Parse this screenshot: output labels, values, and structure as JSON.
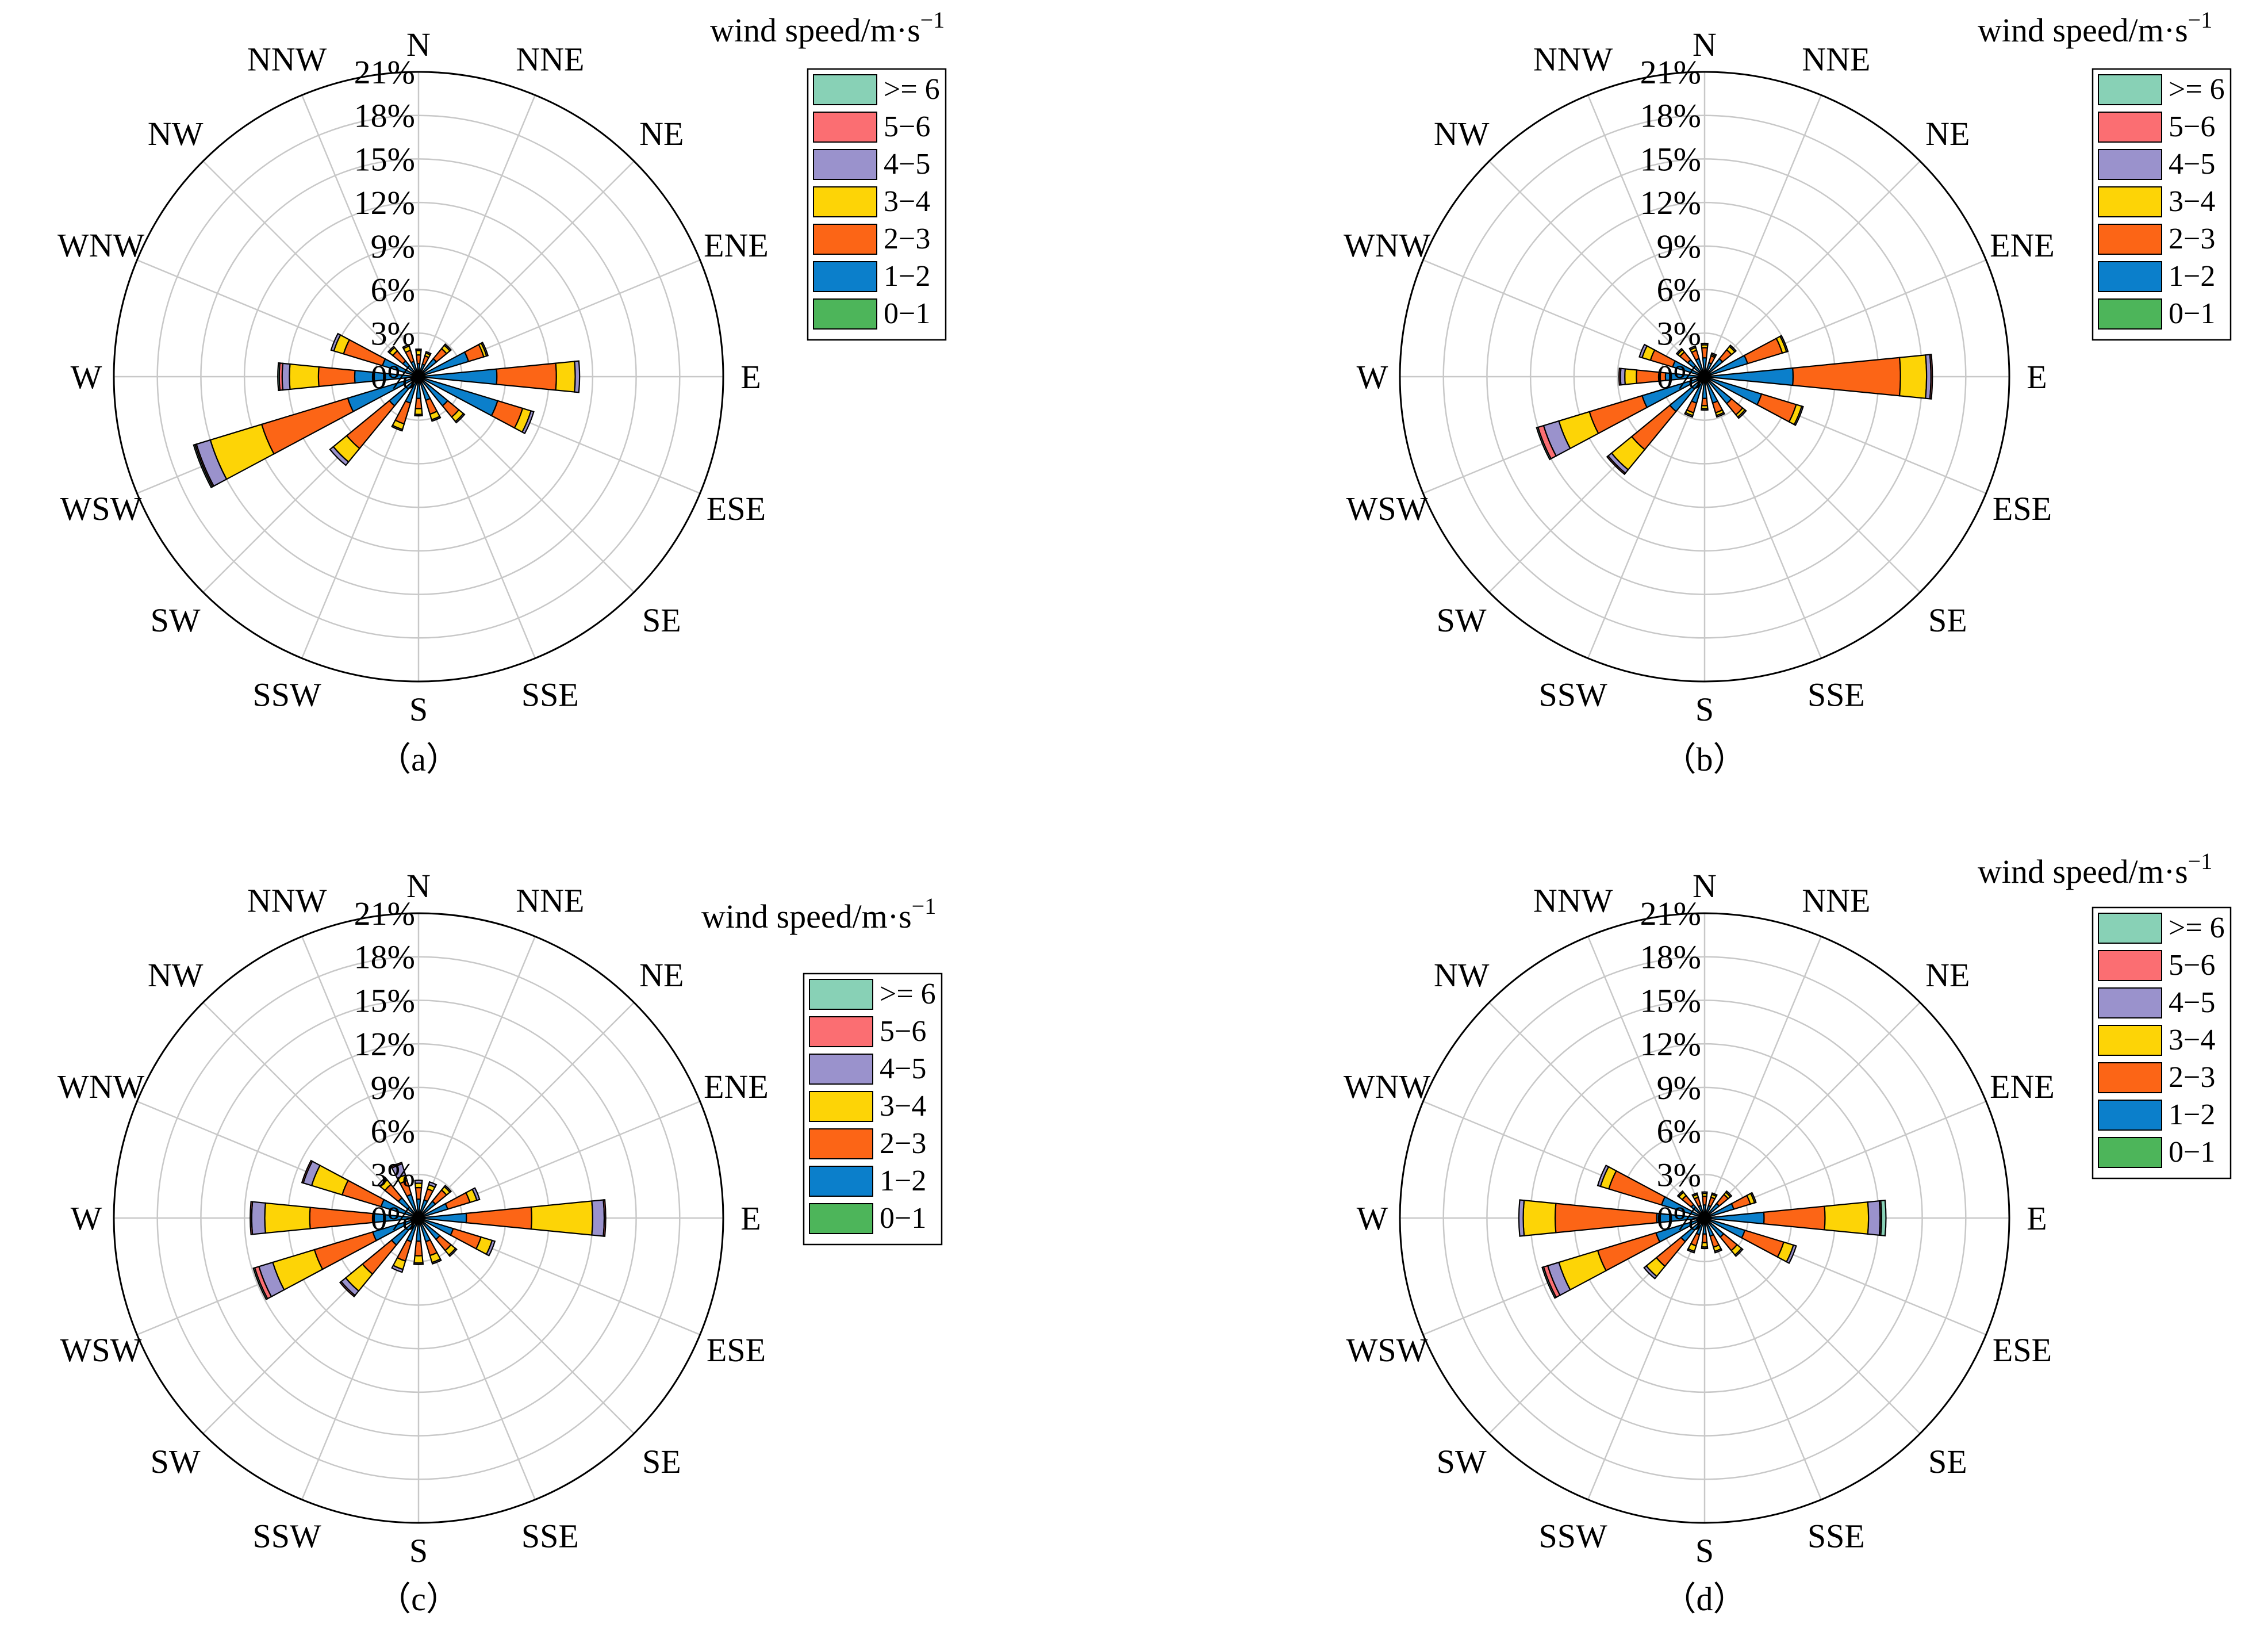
{
  "figure": {
    "speed_bins": [
      ">= 6",
      "5−6",
      "4−5",
      "3−4",
      "2−3",
      "1−2",
      "0−1"
    ],
    "legend_title": "wind speed/m·s",
    "legend_title_exponent": "−1",
    "colors": {
      "bin_0_1": "#4db55a",
      "bin_1_2": "#0b7fcb",
      "bin_2_3": "#fc6516",
      "bin_3_4": "#fdd406",
      "bin_4_5": "#9a92cc",
      "bin_5_6": "#fb6e72",
      "bin_ge6": "#88d1b6",
      "grid": "#c8c8c8",
      "outline": "#000000"
    }
  },
  "chart_data": [
    {
      "type": "wind-rose",
      "panel_label": "（a）",
      "directions": [
        "N",
        "NNE",
        "NE",
        "ENE",
        "E",
        "ESE",
        "SE",
        "SSE",
        "S",
        "SSW",
        "SW",
        "WSW",
        "W",
        "WNW",
        "NW",
        "NNW"
      ],
      "radial_ticks": [
        "0%",
        "3%",
        "6%",
        "9%",
        "12%",
        "15%",
        "18%",
        "21%"
      ],
      "radial_max": 21,
      "legend_labels": [
        ">= 6",
        "5−6",
        "4−5",
        "3−4",
        "2−3",
        "1−2",
        "0−1"
      ],
      "stack_order": [
        "0−1",
        "1−2",
        "2−3",
        "3−4",
        "4−5",
        "5−6",
        ">= 6"
      ],
      "series": [
        {
          "name": "0−1",
          "values": [
            0.1,
            0.1,
            0.1,
            0.1,
            0.1,
            0.1,
            0.1,
            0.1,
            0.1,
            0.1,
            0.1,
            0.1,
            0.1,
            0.1,
            0.1,
            0.1
          ]
        },
        {
          "name": "1−2",
          "values": [
            0.8,
            0.8,
            1.5,
            3.5,
            5.3,
            5.6,
            2.5,
            1.6,
            1.4,
            1.8,
            2.5,
            5.0,
            4.3,
            2.5,
            1.3,
            1.0
          ]
        },
        {
          "name": "2−3",
          "values": [
            0.6,
            0.6,
            0.9,
            1.1,
            4.1,
            1.8,
            1.0,
            1.0,
            0.7,
            1.5,
            3.8,
            6.2,
            2.5,
            2.8,
            0.9,
            0.8
          ]
        },
        {
          "name": "3−4",
          "values": [
            0.3,
            0.2,
            0.3,
            0.2,
            1.3,
            0.6,
            0.4,
            0.4,
            0.4,
            0.4,
            1.2,
            3.7,
            2.0,
            0.7,
            0.3,
            0.3
          ]
        },
        {
          "name": "4−5",
          "values": [
            0.1,
            0.1,
            0.1,
            0.1,
            0.3,
            0.2,
            0.1,
            0.1,
            0.1,
            0.1,
            0.3,
            1.0,
            0.5,
            0.2,
            0.1,
            0.1
          ]
        },
        {
          "name": "5−6",
          "values": [
            0.0,
            0.0,
            0.0,
            0.0,
            0.0,
            0.0,
            0.0,
            0.0,
            0.0,
            0.0,
            0.0,
            0.1,
            0.2,
            0.0,
            0.0,
            0.0
          ]
        },
        {
          "name": ">= 6",
          "values": [
            0.0,
            0.0,
            0.0,
            0.0,
            0.0,
            0.0,
            0.0,
            0.0,
            0.0,
            0.0,
            0.0,
            0.1,
            0.1,
            0.0,
            0.0,
            0.0
          ]
        }
      ]
    },
    {
      "type": "wind-rose",
      "panel_label": "（b）",
      "directions": [
        "N",
        "NNE",
        "NE",
        "ENE",
        "E",
        "ESE",
        "SE",
        "SSE",
        "S",
        "SSW",
        "SW",
        "WSW",
        "W",
        "WNW",
        "NW",
        "NNW"
      ],
      "radial_ticks": [
        "0%",
        "3%",
        "6%",
        "9%",
        "12%",
        "15%",
        "18%",
        "21%"
      ],
      "radial_max": 21,
      "legend_labels": [
        ">= 6",
        "5−6",
        "4−5",
        "3−4",
        "2−3",
        "1−2",
        "0−1"
      ],
      "stack_order": [
        "0−1",
        "1−2",
        "2−3",
        "3−4",
        "4−5",
        "5−6",
        ">= 6"
      ],
      "series": [
        {
          "name": "0−1",
          "values": [
            0.1,
            0.1,
            0.1,
            0.1,
            0.1,
            0.1,
            0.1,
            0.1,
            0.1,
            0.1,
            0.1,
            0.1,
            0.1,
            0.1,
            0.1,
            0.1
          ]
        },
        {
          "name": "1−2",
          "values": [
            1.2,
            0.9,
            1.5,
            3.0,
            6.0,
            4.0,
            2.3,
            1.8,
            1.4,
            1.8,
            3.0,
            4.4,
            2.6,
            2.2,
            1.4,
            1.2
          ]
        },
        {
          "name": "2−3",
          "values": [
            0.7,
            0.5,
            0.8,
            2.5,
            7.4,
            2.5,
            1.0,
            0.7,
            0.5,
            0.7,
            3.4,
            3.8,
            2.0,
            1.6,
            0.7,
            0.6
          ]
        },
        {
          "name": "3−4",
          "values": [
            0.2,
            0.1,
            0.3,
            0.3,
            1.8,
            0.4,
            0.2,
            0.2,
            0.2,
            0.2,
            1.8,
            2.2,
            0.8,
            0.6,
            0.2,
            0.2
          ]
        },
        {
          "name": "4−5",
          "values": [
            0.1,
            0.1,
            0.1,
            0.1,
            0.3,
            0.1,
            0.1,
            0.1,
            0.1,
            0.1,
            0.3,
            1.1,
            0.3,
            0.2,
            0.1,
            0.1
          ]
        },
        {
          "name": "5−6",
          "values": [
            0.0,
            0.0,
            0.0,
            0.0,
            0.1,
            0.0,
            0.0,
            0.0,
            0.0,
            0.0,
            0.1,
            0.4,
            0.1,
            0.0,
            0.0,
            0.0
          ]
        },
        {
          "name": ">= 6",
          "values": [
            0.0,
            0.0,
            0.0,
            0.0,
            0.0,
            0.0,
            0.0,
            0.0,
            0.0,
            0.0,
            0.0,
            0.1,
            0.0,
            0.0,
            0.0,
            0.0
          ]
        }
      ]
    },
    {
      "type": "wind-rose",
      "panel_label": "（c）",
      "directions": [
        "N",
        "NNE",
        "NE",
        "ENE",
        "E",
        "ESE",
        "SE",
        "SSE",
        "S",
        "SSW",
        "SW",
        "WSW",
        "W",
        "WNW",
        "NW",
        "NNW"
      ],
      "radial_ticks": [
        "0%",
        "3%",
        "6%",
        "9%",
        "12%",
        "15%",
        "18%",
        "21%"
      ],
      "radial_max": 21,
      "legend_labels": [
        ">= 6",
        "5−6",
        "4−5",
        "3−4",
        "2−3",
        "1−2",
        "0−1"
      ],
      "stack_order": [
        "0−1",
        "1−2",
        "2−3",
        "3−4",
        "4−5",
        "5−6",
        ">= 6"
      ],
      "series": [
        {
          "name": "0−1",
          "values": [
            0.1,
            0.1,
            0.1,
            0.1,
            0.1,
            0.1,
            0.1,
            0.1,
            0.1,
            0.1,
            0.1,
            0.1,
            0.1,
            0.1,
            0.1,
            0.1
          ]
        },
        {
          "name": "1−2",
          "values": [
            1.2,
            1.2,
            1.4,
            2.0,
            3.2,
            2.4,
            1.8,
            1.6,
            1.5,
            1.6,
            2.3,
            3.2,
            3.0,
            2.6,
            1.7,
            1.6
          ]
        },
        {
          "name": "2−3",
          "values": [
            0.8,
            0.8,
            1.0,
            1.6,
            4.5,
            2.0,
            1.0,
            1.0,
            1.0,
            1.4,
            2.6,
            4.2,
            4.4,
            2.8,
            1.2,
            1.0
          ]
        },
        {
          "name": "3−4",
          "values": [
            0.3,
            0.3,
            0.3,
            0.5,
            4.2,
            0.8,
            0.4,
            0.5,
            0.5,
            0.6,
            1.5,
            3.0,
            3.1,
            2.2,
            0.4,
            0.4
          ]
        },
        {
          "name": "4−5",
          "values": [
            0.2,
            0.2,
            0.1,
            0.2,
            0.8,
            0.2,
            0.1,
            0.1,
            0.1,
            0.2,
            0.4,
            1.0,
            0.9,
            0.6,
            0.2,
            0.8
          ]
        },
        {
          "name": "5−6",
          "values": [
            0.0,
            0.0,
            0.0,
            0.0,
            0.1,
            0.0,
            0.0,
            0.0,
            0.0,
            0.0,
            0.1,
            0.3,
            0.1,
            0.1,
            0.0,
            0.1
          ]
        },
        {
          "name": ">= 6",
          "values": [
            0.0,
            0.0,
            0.0,
            0.0,
            0.0,
            0.0,
            0.0,
            0.0,
            0.0,
            0.0,
            0.0,
            0.1,
            0.0,
            0.0,
            0.0,
            0.0
          ]
        }
      ]
    },
    {
      "type": "wind-rose",
      "panel_label": "（d）",
      "directions": [
        "N",
        "NNE",
        "NE",
        "ENE",
        "E",
        "ESE",
        "SE",
        "SSE",
        "S",
        "SSW",
        "SW",
        "WSW",
        "W",
        "WNW",
        "NW",
        "NNW"
      ],
      "radial_ticks": [
        "0%",
        "3%",
        "6%",
        "9%",
        "12%",
        "15%",
        "18%",
        "21%"
      ],
      "radial_max": 21,
      "legend_labels": [
        ">= 6",
        "5−6",
        "4−5",
        "3−4",
        "2−3",
        "1−2",
        "0−1"
      ],
      "stack_order": [
        "0−1",
        "1−2",
        "2−3",
        "3−4",
        "4−5",
        "5−6",
        ">= 6"
      ],
      "series": [
        {
          "name": "0−1",
          "values": [
            0.1,
            0.1,
            0.1,
            0.1,
            0.1,
            0.1,
            0.1,
            0.1,
            0.1,
            0.1,
            0.1,
            0.1,
            0.1,
            0.1,
            0.1,
            0.1
          ]
        },
        {
          "name": "1−2",
          "values": [
            0.8,
            0.8,
            1.2,
            2.0,
            4.0,
            2.8,
            1.6,
            1.2,
            1.0,
            1.1,
            2.0,
            3.4,
            3.2,
            3.0,
            1.1,
            0.8
          ]
        },
        {
          "name": "2−3",
          "values": [
            0.6,
            0.6,
            0.8,
            1.2,
            4.2,
            2.8,
            1.2,
            0.8,
            0.6,
            0.8,
            2.2,
            4.2,
            7.0,
            3.8,
            0.8,
            0.6
          ]
        },
        {
          "name": "3−4",
          "values": [
            0.2,
            0.2,
            0.2,
            0.3,
            3.0,
            0.7,
            0.4,
            0.3,
            0.3,
            0.4,
            0.9,
            2.8,
            2.2,
            0.6,
            0.3,
            0.2
          ]
        },
        {
          "name": "4−5",
          "values": [
            0.1,
            0.1,
            0.1,
            0.1,
            0.8,
            0.2,
            0.1,
            0.1,
            0.1,
            0.1,
            0.2,
            0.8,
            0.3,
            0.2,
            0.1,
            0.1
          ]
        },
        {
          "name": "5−6",
          "values": [
            0.0,
            0.0,
            0.0,
            0.0,
            0.1,
            0.0,
            0.0,
            0.0,
            0.0,
            0.0,
            0.0,
            0.3,
            0.0,
            0.0,
            0.0,
            0.0
          ]
        },
        {
          "name": ">= 6",
          "values": [
            0.0,
            0.0,
            0.0,
            0.0,
            0.3,
            0.0,
            0.0,
            0.0,
            0.0,
            0.0,
            0.0,
            0.1,
            0.0,
            0.0,
            0.0,
            0.0
          ]
        }
      ]
    }
  ]
}
